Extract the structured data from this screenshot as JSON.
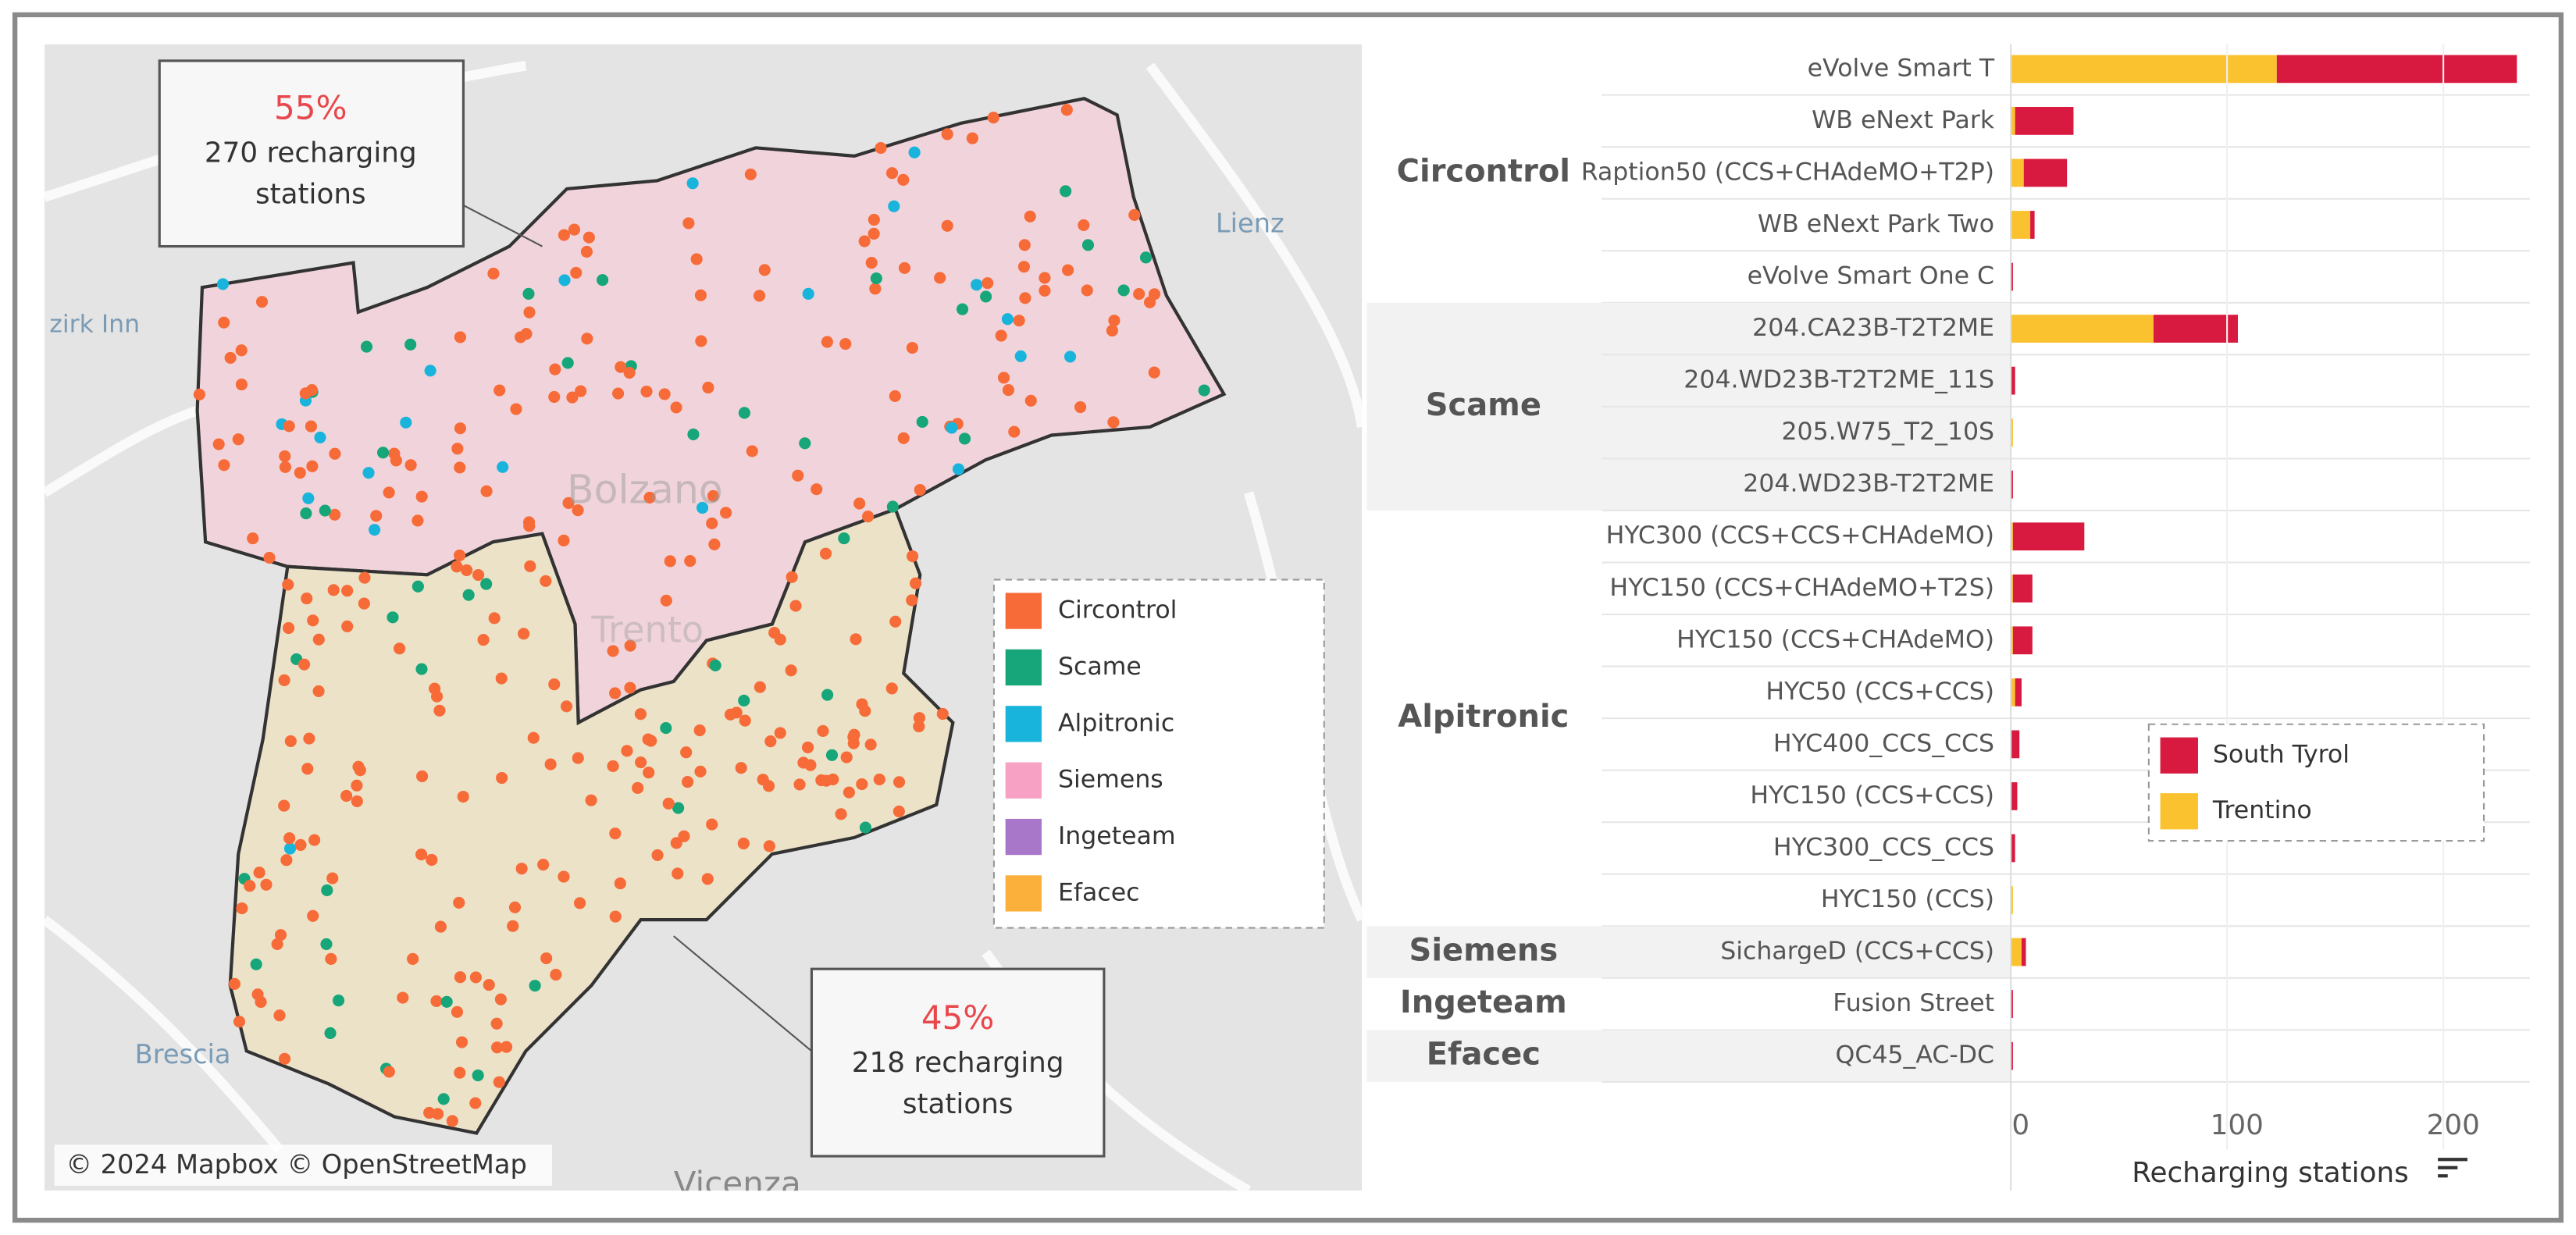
{
  "map": {
    "annotations": [
      {
        "percent": "55%",
        "lines": [
          "270 recharging",
          "stations"
        ]
      },
      {
        "percent": "45%",
        "lines": [
          "218 recharging",
          "stations"
        ]
      }
    ],
    "legend": [
      {
        "name": "Circontrol",
        "color": "#f76b38"
      },
      {
        "name": "Scame",
        "color": "#16a679"
      },
      {
        "name": "Alpitronic",
        "color": "#19b4dc"
      },
      {
        "name": "Siemens",
        "color": "#f7a1c4"
      },
      {
        "name": "Ingeteam",
        "color": "#a877c9"
      },
      {
        "name": "Efacec",
        "color": "#fbb03b"
      }
    ],
    "place_labels": [
      "zirk Inn",
      "Lienz",
      "Bolzano",
      "Trento",
      "Brescia",
      "Vicenza"
    ],
    "attribution": "© 2024 Mapbox © OpenStreetMap"
  },
  "chart_data": {
    "type": "bar",
    "orientation": "horizontal",
    "stacked": true,
    "groups": [
      {
        "name": "Circontrol",
        "categories": [
          "eVolve Smart T",
          "WB eNext Park",
          "Raption50 (CCS+CHAdeMO+T2P)",
          "WB eNext Park Two",
          "eVolve Smart One C"
        ]
      },
      {
        "name": "Scame",
        "categories": [
          "204.CA23B-T2T2ME",
          "204.WD23B-T2T2ME_11S",
          "205.W75_T2_10S",
          "204.WD23B-T2T2ME"
        ]
      },
      {
        "name": "Alpitronic",
        "categories": [
          "HYC300 (CCS+CCS+CHAdeMO)",
          "HYC150 (CCS+CHAdeMO+T2S)",
          "HYC150 (CCS+CHAdeMO)",
          "HYC50 (CCS+CCS)",
          "HYC400_CCS_CCS",
          "HYC150 (CCS+CCS)",
          "HYC300_CCS_CCS",
          "HYC150 (CCS)"
        ]
      },
      {
        "name": "Siemens",
        "categories": [
          "SichargeD (CCS+CCS)"
        ]
      },
      {
        "name": "Ingeteam",
        "categories": [
          "Fusion Street"
        ]
      },
      {
        "name": "Efacec",
        "categories": [
          "QC45_AC-DC"
        ]
      }
    ],
    "series": [
      {
        "name": "South Tyrol",
        "color": "#d91a40",
        "values": [
          111,
          27,
          20,
          2,
          1,
          39,
          2,
          0,
          1,
          33,
          9,
          9,
          3,
          4,
          3,
          2,
          0,
          2,
          1,
          1
        ]
      },
      {
        "name": "Trentino",
        "color": "#fac22f",
        "values": [
          123,
          2,
          6,
          9,
          0,
          66,
          0,
          1,
          0,
          1,
          1,
          1,
          2,
          0,
          0,
          0,
          1,
          5,
          0,
          0
        ]
      }
    ],
    "xlabel": "Recharging stations",
    "xlim": [
      0,
      240
    ],
    "xticks": [
      0,
      100,
      200
    ],
    "grid": true,
    "legend_position": "lower right"
  }
}
